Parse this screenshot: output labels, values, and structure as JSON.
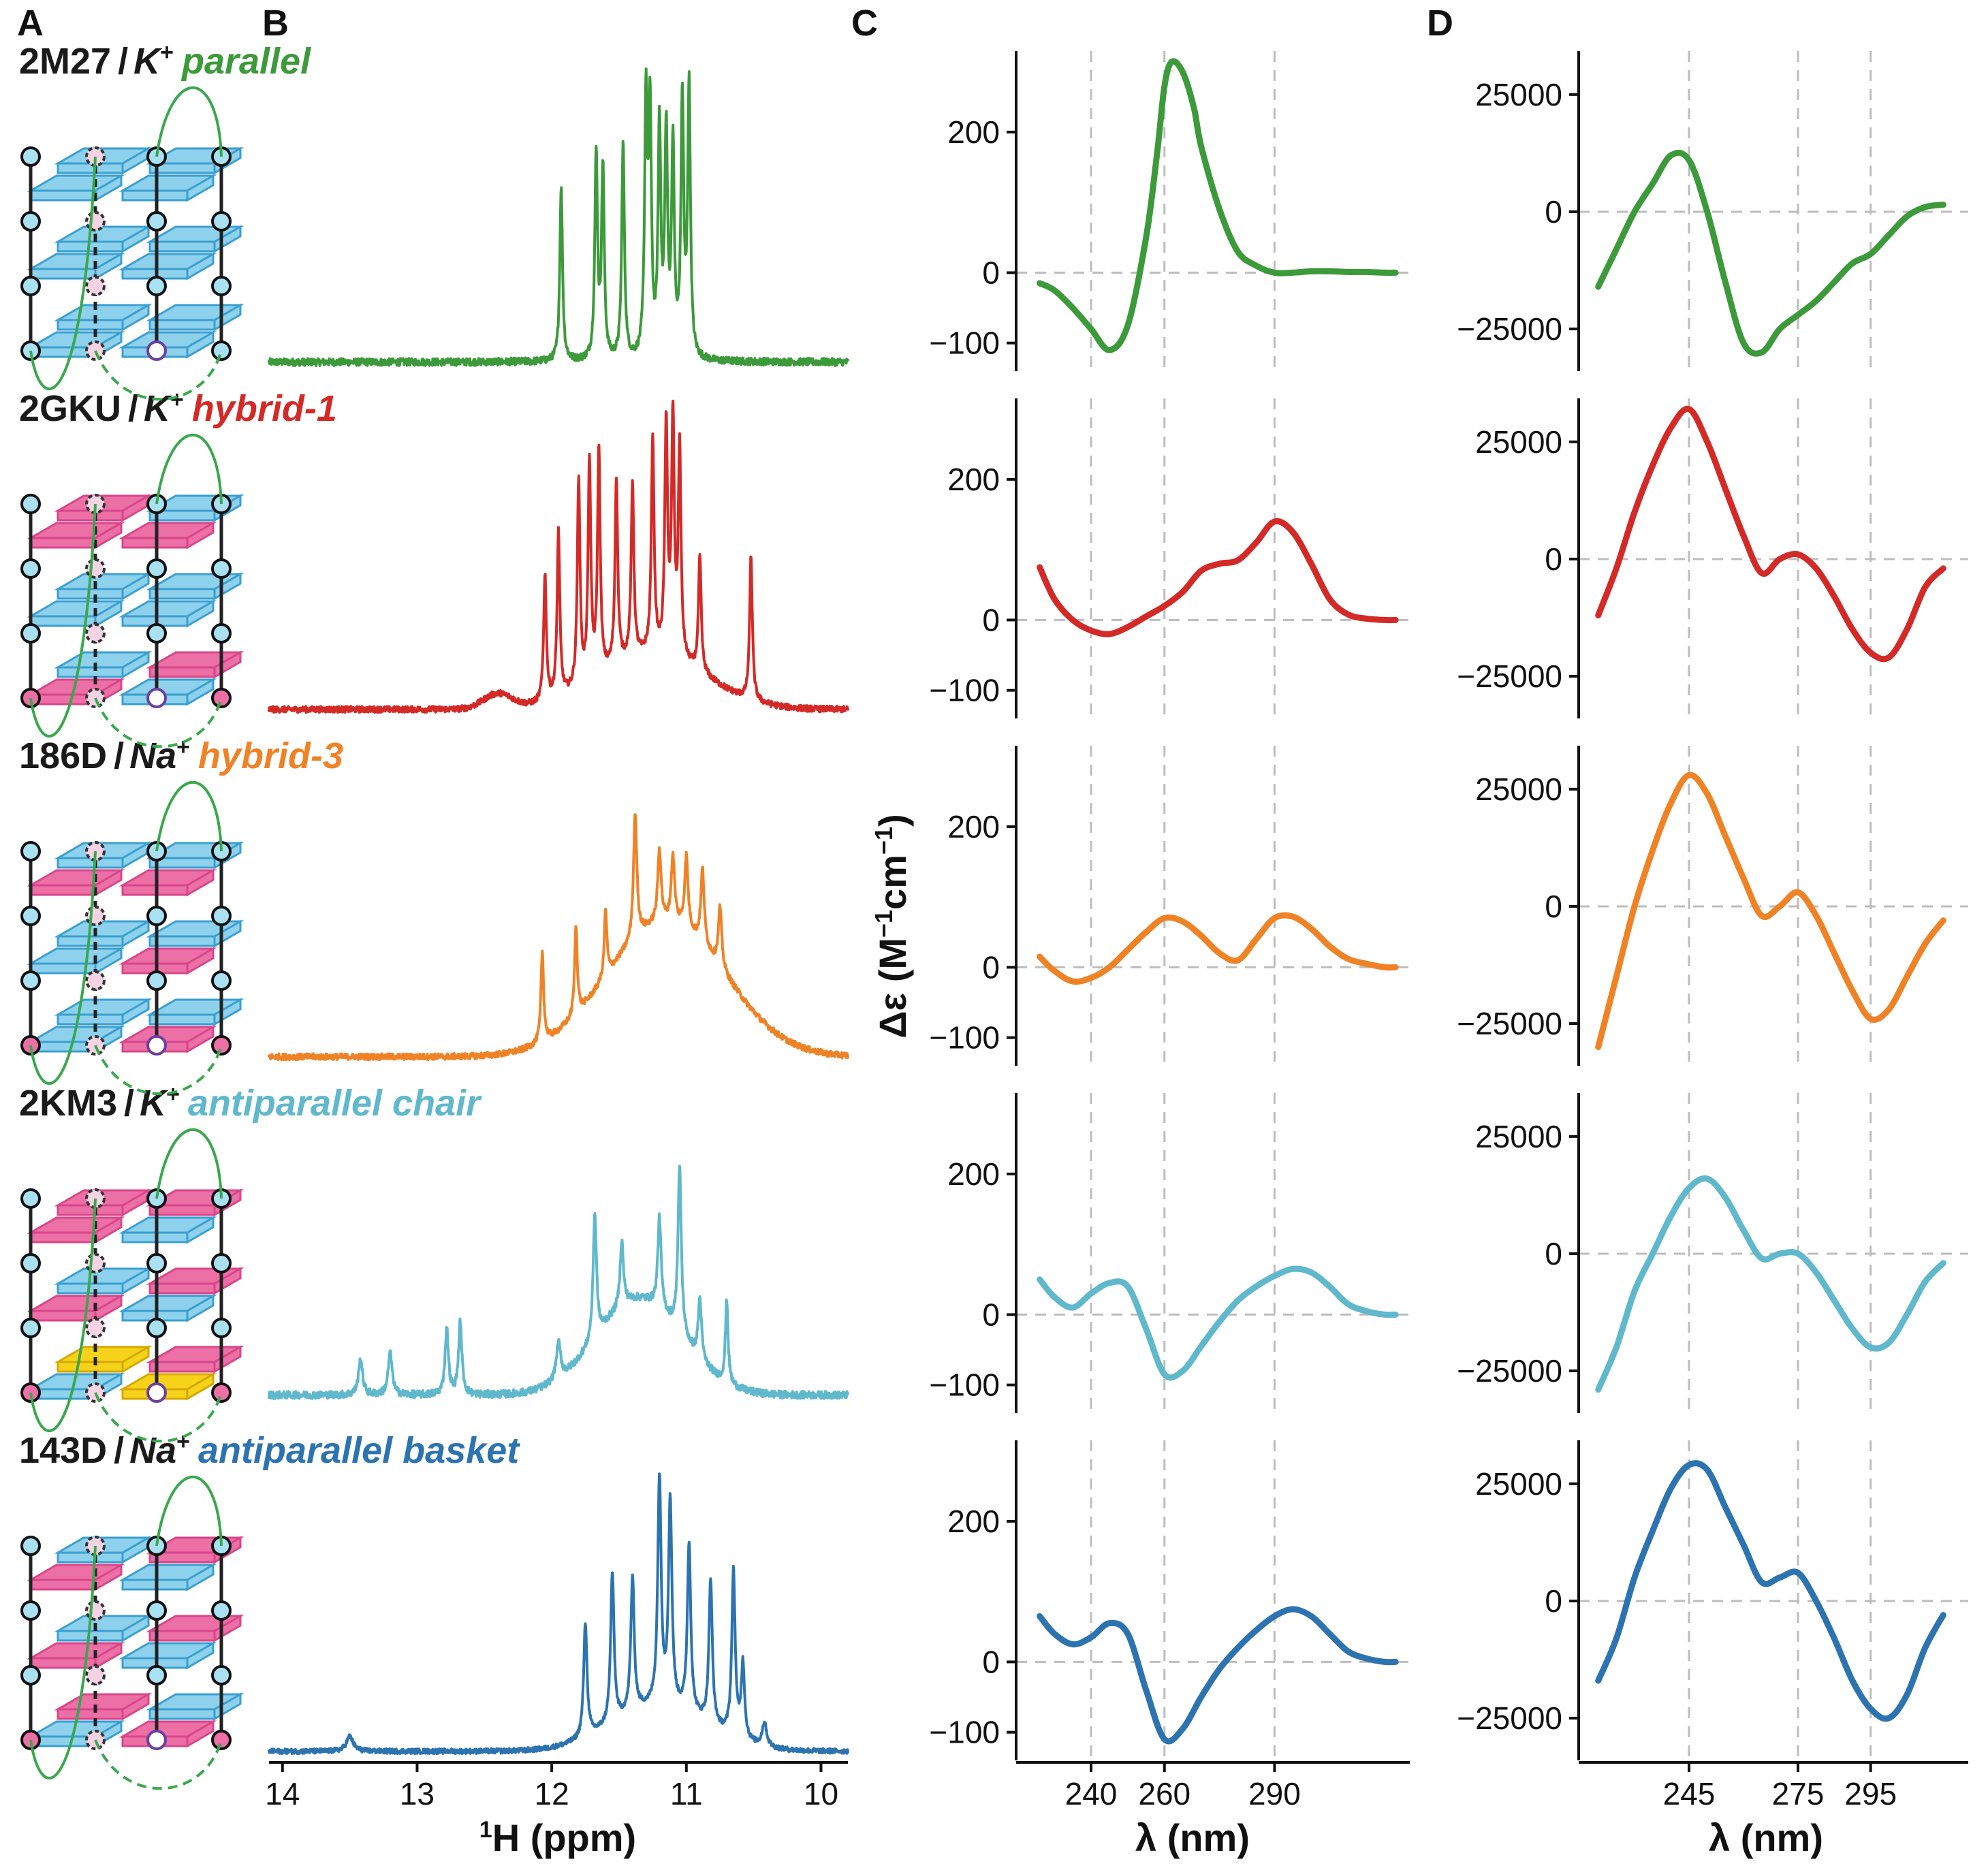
{
  "panel_labels": [
    "A",
    "B",
    "C",
    "D"
  ],
  "colors": {
    "parallel": "#3c9a3a",
    "hybrid1": "#d42a27",
    "hybrid3": "#f08226",
    "chair": "#5fb8cc",
    "basket": "#2c73b0",
    "anti_tile": "#ec6fa6",
    "syn_tile": "#8ed1ec",
    "yellow_tile": "#f6d31a",
    "loop": "#39a84d",
    "nucleotide_special": "#6a3fa0"
  },
  "rows": [
    {
      "pdb": "2M27",
      "sep": "/",
      "ion": "K",
      "ion_charge": "+",
      "topology": "parallel",
      "color": "#3c9a3a"
    },
    {
      "pdb": "2GKU",
      "sep": "/",
      "ion": "K",
      "ion_charge": "+",
      "topology": "hybrid-1",
      "color": "#d42a27"
    },
    {
      "pdb": "186D",
      "sep": "/",
      "ion": "Na",
      "ion_charge": "+",
      "topology": "hybrid-3",
      "color": "#f08226"
    },
    {
      "pdb": "2KM3",
      "sep": "/",
      "ion": "K",
      "ion_charge": "+",
      "topology": "antiparallel chair",
      "color": "#5fb8cc"
    },
    {
      "pdb": "143D",
      "sep": "/",
      "ion": "Na",
      "ion_charge": "+",
      "topology": "antiparallel basket",
      "color": "#2c73b0"
    }
  ],
  "chart_data": [
    {
      "panel": "B",
      "type": "line",
      "title": "",
      "xlabel_sup": "1",
      "xlabel": "H (ppm)",
      "ylabel": "",
      "xlim": [
        14.1,
        9.8
      ],
      "x_reversed": true,
      "xticks": [
        14,
        13,
        12,
        11,
        10
      ],
      "grid": false,
      "series": [
        {
          "color": "#3c9a3a",
          "baseline": 0.03,
          "noise": 0.012,
          "broad": [],
          "peaks": [
            [
              11.93,
              0.58,
              0.012
            ],
            [
              11.67,
              0.68,
              0.012
            ],
            [
              11.62,
              0.64,
              0.012
            ],
            [
              11.47,
              0.72,
              0.012
            ],
            [
              11.3,
              0.84,
              0.012
            ],
            [
              11.27,
              0.8,
              0.012
            ],
            [
              11.2,
              0.76,
              0.012
            ],
            [
              11.15,
              0.74,
              0.012
            ],
            [
              11.1,
              0.7,
              0.012
            ],
            [
              11.03,
              0.86,
              0.012
            ],
            [
              10.98,
              0.9,
              0.012
            ]
          ]
        },
        {
          "color": "#d42a27",
          "baseline": 0.03,
          "noise": 0.01,
          "broad": [
            [
              11.25,
              0.18,
              0.55
            ],
            [
              12.4,
              0.05,
              0.15
            ]
          ],
          "peaks": [
            [
              12.05,
              0.42,
              0.012
            ],
            [
              11.95,
              0.55,
              0.012
            ],
            [
              11.8,
              0.68,
              0.012
            ],
            [
              11.72,
              0.72,
              0.012
            ],
            [
              11.65,
              0.75,
              0.012
            ],
            [
              11.52,
              0.62,
              0.012
            ],
            [
              11.4,
              0.58,
              0.012
            ],
            [
              11.25,
              0.72,
              0.012
            ],
            [
              11.15,
              0.76,
              0.012
            ],
            [
              11.1,
              0.78,
              0.012
            ],
            [
              11.05,
              0.7,
              0.012
            ],
            [
              10.9,
              0.38,
              0.012
            ],
            [
              10.52,
              0.48,
              0.012
            ]
          ]
        },
        {
          "color": "#f08226",
          "baseline": 0.03,
          "noise": 0.01,
          "broad": [
            [
              11.15,
              0.45,
              0.62
            ]
          ],
          "peaks": [
            [
              12.07,
              0.3,
              0.012
            ],
            [
              11.82,
              0.3,
              0.012
            ],
            [
              11.6,
              0.22,
              0.012
            ],
            [
              11.38,
              0.42,
              0.015
            ],
            [
              11.2,
              0.24,
              0.015
            ],
            [
              11.1,
              0.22,
              0.015
            ],
            [
              11.0,
              0.24,
              0.015
            ],
            [
              10.88,
              0.25,
              0.015
            ],
            [
              10.75,
              0.2,
              0.015
            ]
          ]
        },
        {
          "color": "#5fb8cc",
          "baseline": 0.06,
          "noise": 0.012,
          "broad": [
            [
              11.35,
              0.32,
              0.45
            ]
          ],
          "peaks": [
            [
              13.42,
              0.12,
              0.018
            ],
            [
              13.2,
              0.14,
              0.018
            ],
            [
              12.78,
              0.22,
              0.015
            ],
            [
              12.68,
              0.24,
              0.015
            ],
            [
              11.95,
              0.12,
              0.02
            ],
            [
              11.68,
              0.42,
              0.015
            ],
            [
              11.48,
              0.22,
              0.015
            ],
            [
              11.2,
              0.3,
              0.015
            ],
            [
              11.05,
              0.55,
              0.015
            ],
            [
              10.9,
              0.2,
              0.015
            ],
            [
              10.7,
              0.28,
              0.012
            ]
          ]
        },
        {
          "color": "#2c73b0",
          "baseline": 0.03,
          "noise": 0.008,
          "broad": [
            [
              11.2,
              0.15,
              0.5
            ]
          ],
          "peaks": [
            [
              13.5,
              0.05,
              0.03
            ],
            [
              11.75,
              0.38,
              0.015
            ],
            [
              11.55,
              0.5,
              0.015
            ],
            [
              11.4,
              0.45,
              0.015
            ],
            [
              11.2,
              0.75,
              0.015
            ],
            [
              11.12,
              0.68,
              0.015
            ],
            [
              10.98,
              0.56,
              0.015
            ],
            [
              10.82,
              0.48,
              0.015
            ],
            [
              10.65,
              0.55,
              0.015
            ],
            [
              10.58,
              0.25,
              0.015
            ],
            [
              10.42,
              0.08,
              0.02
            ]
          ]
        }
      ]
    },
    {
      "panel": "C",
      "type": "line",
      "title": "",
      "xlabel": "λ (nm)",
      "ylabel_prefix": "Δε (M",
      "ylabel_mid": "cm",
      "ylabel_sup": "−1",
      "ylabel_close": ")",
      "xlim": [
        222,
        325
      ],
      "ylim": [
        -140,
        320
      ],
      "xticks": [
        240,
        260,
        290
      ],
      "yticks": [
        200,
        0,
        -100
      ],
      "ytick_labels": [
        "200",
        "0",
        "−100"
      ],
      "vgrid": [
        240,
        260,
        290
      ],
      "hgrid": [
        0
      ],
      "series": [
        {
          "color": "#3c9a3a",
          "x": [
            226,
            230,
            235,
            240,
            245,
            250,
            255,
            258,
            260,
            262,
            265,
            268,
            270,
            275,
            280,
            285,
            290,
            295,
            300,
            305,
            310,
            315,
            320,
            323
          ],
          "y": [
            -15,
            -25,
            -50,
            -80,
            -110,
            -75,
            50,
            170,
            265,
            300,
            285,
            235,
            180,
            90,
            30,
            10,
            0,
            0,
            2,
            2,
            1,
            1,
            0,
            0
          ]
        },
        {
          "color": "#d42a27",
          "x": [
            226,
            230,
            235,
            240,
            245,
            250,
            255,
            260,
            265,
            270,
            275,
            280,
            285,
            290,
            295,
            300,
            305,
            310,
            315,
            320,
            323
          ],
          "y": [
            75,
            30,
            0,
            -15,
            -20,
            -10,
            5,
            20,
            40,
            70,
            80,
            85,
            110,
            140,
            125,
            80,
            30,
            8,
            2,
            0,
            0
          ]
        },
        {
          "color": "#f08226",
          "x": [
            226,
            230,
            235,
            240,
            245,
            250,
            255,
            260,
            265,
            270,
            275,
            280,
            285,
            290,
            295,
            300,
            305,
            310,
            315,
            320,
            323
          ],
          "y": [
            15,
            -5,
            -20,
            -15,
            0,
            25,
            50,
            70,
            65,
            45,
            20,
            10,
            40,
            70,
            72,
            55,
            30,
            12,
            5,
            0,
            0
          ]
        },
        {
          "color": "#5fb8cc",
          "x": [
            226,
            230,
            235,
            240,
            245,
            250,
            255,
            260,
            265,
            270,
            275,
            280,
            285,
            290,
            295,
            300,
            305,
            310,
            315,
            320,
            323
          ],
          "y": [
            50,
            25,
            10,
            30,
            45,
            40,
            -20,
            -85,
            -80,
            -45,
            -10,
            20,
            40,
            55,
            65,
            60,
            40,
            15,
            5,
            0,
            0
          ]
        },
        {
          "color": "#2c73b0",
          "x": [
            226,
            230,
            235,
            240,
            245,
            250,
            255,
            260,
            265,
            270,
            275,
            280,
            285,
            290,
            295,
            300,
            305,
            310,
            315,
            320,
            323
          ],
          "y": [
            65,
            40,
            25,
            35,
            55,
            40,
            -40,
            -110,
            -95,
            -50,
            -10,
            20,
            45,
            65,
            75,
            65,
            40,
            15,
            5,
            0,
            0
          ]
        }
      ]
    },
    {
      "panel": "D",
      "type": "line",
      "title": "",
      "xlabel": "λ (nm)",
      "ylabel": "",
      "xlim": [
        215,
        320
      ],
      "ylim": [
        -34000,
        35000
      ],
      "xticks": [
        245,
        275,
        295
      ],
      "xtick_labels": [
        "245",
        "275",
        "295"
      ],
      "yticks": [
        25000,
        0,
        -25000
      ],
      "ytick_labels": [
        "25000",
        "0",
        "−25000"
      ],
      "vgrid": [
        245,
        275,
        295
      ],
      "hgrid": [
        0
      ],
      "series": [
        {
          "color": "#3c9a3a",
          "x": [
            220,
            225,
            230,
            235,
            240,
            245,
            250,
            255,
            260,
            265,
            270,
            275,
            280,
            285,
            290,
            295,
            300,
            305,
            310,
            315
          ],
          "y": [
            -16000,
            -8000,
            0,
            6000,
            12000,
            11000,
            0,
            -15000,
            -28000,
            -30000,
            -25000,
            -22000,
            -19000,
            -15000,
            -11000,
            -9000,
            -5000,
            -1000,
            1000,
            1500
          ]
        },
        {
          "color": "#d42a27",
          "x": [
            220,
            225,
            230,
            235,
            240,
            245,
            250,
            255,
            260,
            265,
            270,
            275,
            280,
            285,
            290,
            295,
            300,
            305,
            310,
            315
          ],
          "y": [
            -12000,
            -2000,
            10000,
            20000,
            28000,
            32000,
            25000,
            15000,
            5000,
            -3000,
            0,
            1000,
            -2000,
            -8000,
            -15000,
            -20000,
            -21000,
            -15000,
            -6000,
            -2000
          ]
        },
        {
          "color": "#f08226",
          "x": [
            220,
            225,
            230,
            235,
            240,
            245,
            250,
            255,
            260,
            265,
            270,
            275,
            280,
            285,
            290,
            295,
            300,
            305,
            310,
            315
          ],
          "y": [
            -30000,
            -15000,
            0,
            12000,
            22000,
            28000,
            24000,
            15000,
            6000,
            -2000,
            0,
            3000,
            -2000,
            -10000,
            -18000,
            -24000,
            -22000,
            -15000,
            -8000,
            -3000
          ]
        },
        {
          "color": "#5fb8cc",
          "x": [
            220,
            225,
            230,
            235,
            240,
            245,
            250,
            255,
            260,
            265,
            270,
            275,
            280,
            285,
            290,
            295,
            300,
            305,
            310,
            315
          ],
          "y": [
            -29000,
            -20000,
            -8000,
            0,
            8000,
            14000,
            16000,
            12000,
            5000,
            -1000,
            0,
            0,
            -4000,
            -10000,
            -16000,
            -20000,
            -19000,
            -13000,
            -6000,
            -2000
          ]
        },
        {
          "color": "#2c73b0",
          "x": [
            220,
            225,
            230,
            235,
            240,
            245,
            250,
            255,
            260,
            265,
            270,
            275,
            280,
            285,
            290,
            295,
            300,
            305,
            310,
            315
          ],
          "y": [
            -17000,
            -8000,
            5000,
            15000,
            24000,
            29000,
            28000,
            20000,
            12000,
            4000,
            5000,
            6000,
            0,
            -8000,
            -17000,
            -23000,
            -25000,
            -20000,
            -10000,
            -3000
          ]
        }
      ]
    }
  ]
}
